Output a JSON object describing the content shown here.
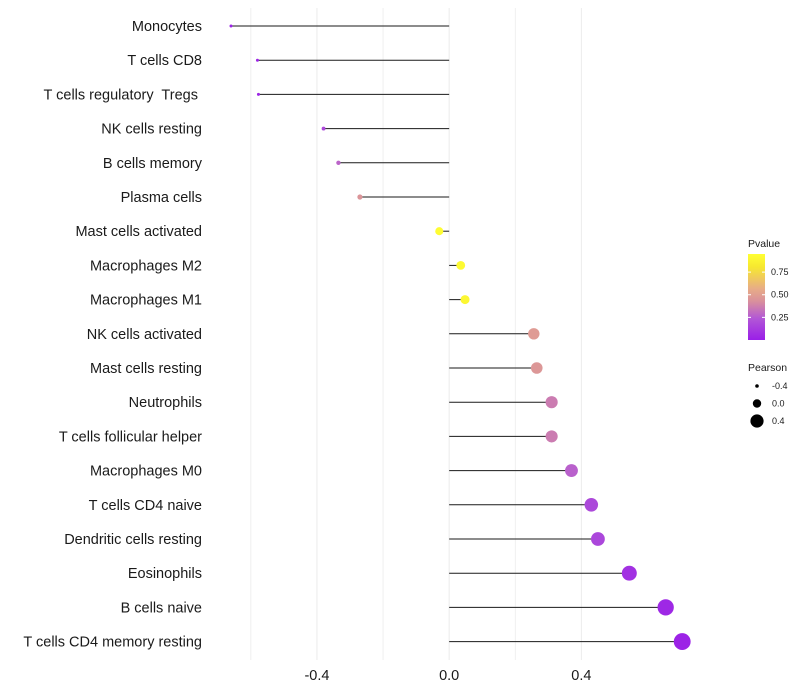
{
  "chart_data": {
    "type": "lollipop",
    "title": "",
    "xlabel": "",
    "ylabel": "",
    "xlim": [
      -0.66,
      0.78
    ],
    "x_ticks": [
      {
        "value": -0.4,
        "label": "-0.4"
      },
      {
        "value": 0.0,
        "label": "0.0"
      },
      {
        "value": 0.4,
        "label": "0.4"
      }
    ],
    "grid": true,
    "points": [
      {
        "name": "Monocytes",
        "pearson": -0.66,
        "pvalue": 0.02
      },
      {
        "name": "T cells CD8",
        "pearson": -0.58,
        "pvalue": 0.03
      },
      {
        "name": "T cells regulatory  Tregs ",
        "pearson": -0.577,
        "pvalue": 0.03
      },
      {
        "name": "NK cells resting",
        "pearson": -0.38,
        "pvalue": 0.18
      },
      {
        "name": "B cells memory",
        "pearson": -0.335,
        "pvalue": 0.28
      },
      {
        "name": "Plasma cells",
        "pearson": -0.27,
        "pvalue": 0.45
      },
      {
        "name": "Mast cells activated",
        "pearson": -0.03,
        "pvalue": 0.93
      },
      {
        "name": "Macrophages M2",
        "pearson": 0.035,
        "pvalue": 0.92
      },
      {
        "name": "Macrophages M1",
        "pearson": 0.048,
        "pvalue": 0.9
      },
      {
        "name": "NK cells activated",
        "pearson": 0.256,
        "pvalue": 0.48
      },
      {
        "name": "Mast cells resting",
        "pearson": 0.265,
        "pvalue": 0.46
      },
      {
        "name": "Neutrophils",
        "pearson": 0.31,
        "pvalue": 0.36
      },
      {
        "name": "T cells follicular helper",
        "pearson": 0.31,
        "pvalue": 0.36
      },
      {
        "name": "Macrophages M0",
        "pearson": 0.37,
        "pvalue": 0.27
      },
      {
        "name": "T cells CD4 naive",
        "pearson": 0.43,
        "pvalue": 0.18
      },
      {
        "name": "Dendritic cells resting",
        "pearson": 0.45,
        "pvalue": 0.17
      },
      {
        "name": "Eosinophils",
        "pearson": 0.545,
        "pvalue": 0.08
      },
      {
        "name": "B cells naive",
        "pearson": 0.655,
        "pvalue": 0.04
      },
      {
        "name": "T cells CD4 memory resting",
        "pearson": 0.705,
        "pvalue": 0.02
      }
    ],
    "color_legend": {
      "title": "Pvalue",
      "range": [
        0.0,
        0.95
      ],
      "ticks": [
        {
          "value": 0.75,
          "label": "0.75"
        },
        {
          "value": 0.5,
          "label": "0.50"
        },
        {
          "value": 0.25,
          "label": "0.25"
        }
      ],
      "colors": [
        "#9a1ee8",
        "#b257d6",
        "#d9909c",
        "#e8ad86",
        "#f7e830",
        "#ffff33"
      ]
    },
    "size_legend": {
      "title": "Pearson",
      "entries": [
        {
          "value": -0.4,
          "label": "-0.4"
        },
        {
          "value": 0.0,
          "label": "0.0"
        },
        {
          "value": 0.4,
          "label": "0.4"
        }
      ]
    },
    "colors": {
      "stem": "#1a1a1a",
      "grid": "#ececec",
      "text": "#1a1a1a"
    }
  }
}
